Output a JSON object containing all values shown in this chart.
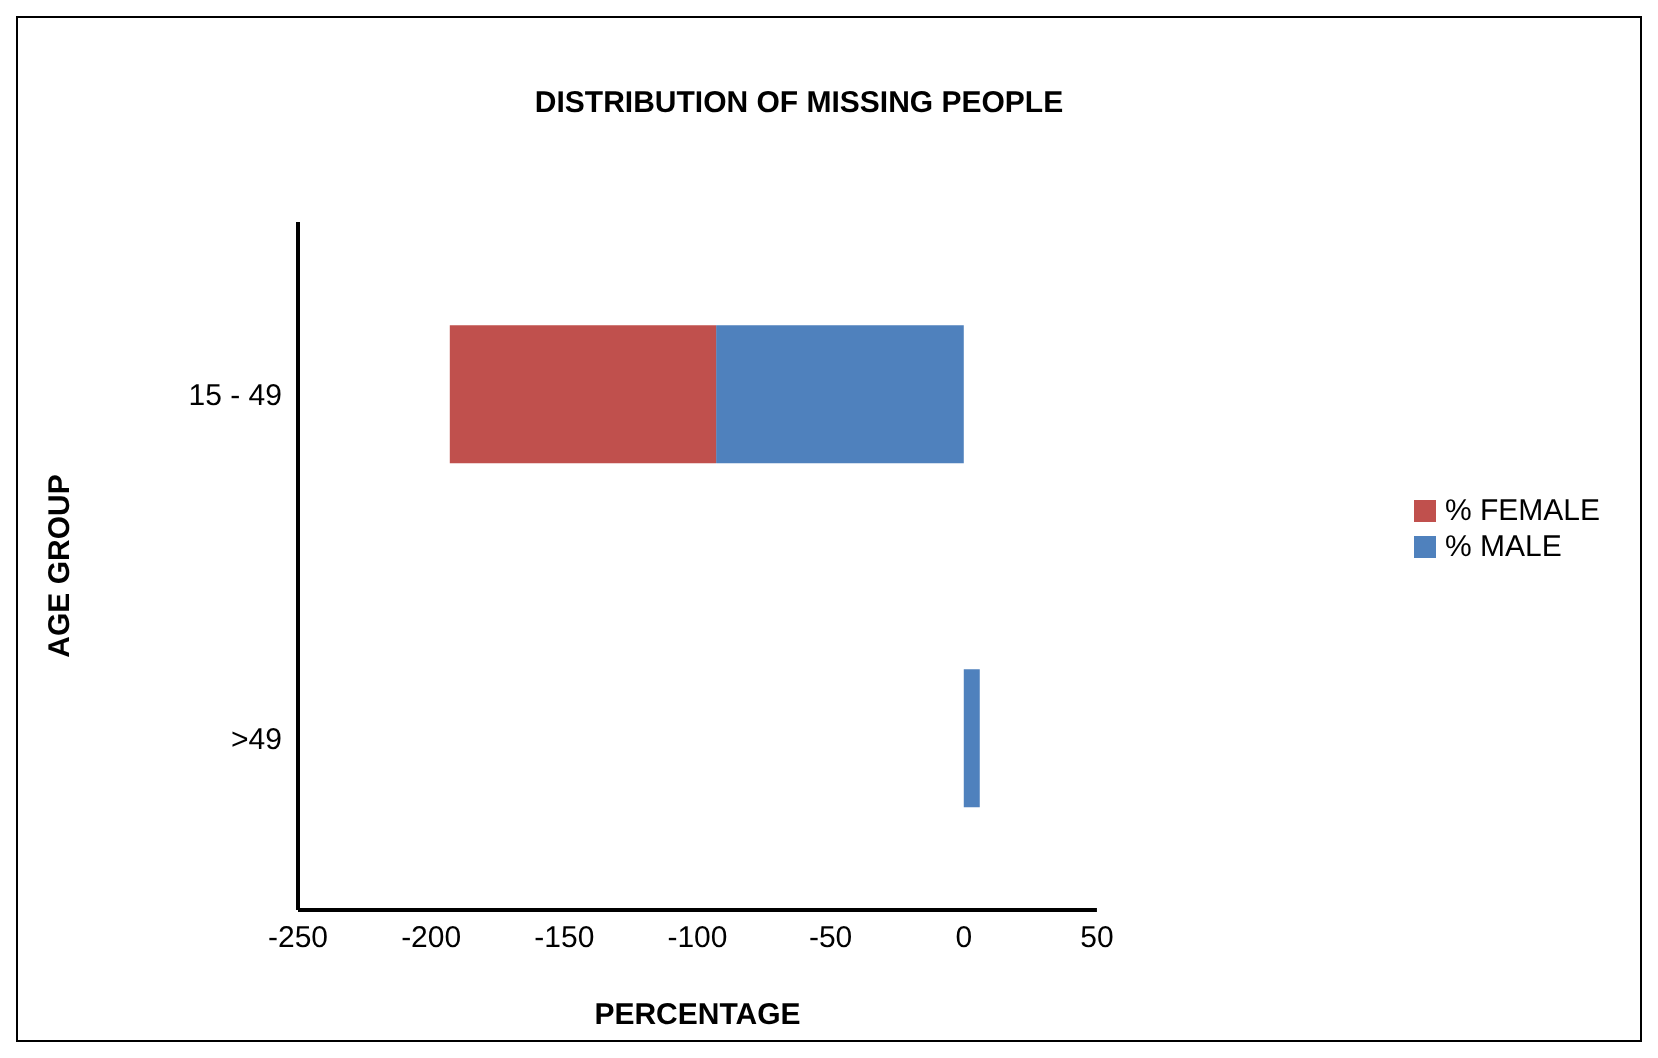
{
  "chart_data": {
    "type": "bar",
    "orientation": "horizontal",
    "stacked": true,
    "title": "DISTRIBUTION OF MISSING PEOPLE",
    "xlabel": "PERCENTAGE",
    "ylabel": "AGE GROUP",
    "categories": [
      "15 - 49",
      ">49"
    ],
    "series": [
      {
        "name": "% MALE",
        "color": "#4f81bd",
        "values": [
          -93,
          6
        ]
      },
      {
        "name": "% FEMALE",
        "color": "#c0504d",
        "values": [
          -100,
          0
        ]
      }
    ],
    "xlim": [
      -250,
      50
    ],
    "xticks": [
      -250,
      -200,
      -150,
      -100,
      -50,
      0,
      50
    ],
    "grid": false,
    "legend": "right"
  }
}
